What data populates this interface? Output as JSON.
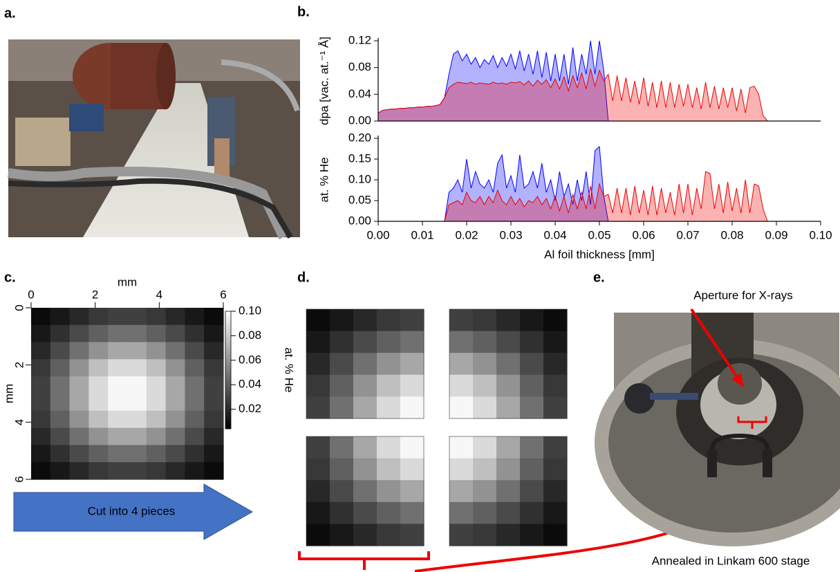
{
  "panel_labels": [
    "a.",
    "b.",
    "c.",
    "d.",
    "e."
  ],
  "arrow_label": "Cut into 4 pieces",
  "annotations": {
    "aperture": "Aperture for X-rays",
    "stage": "Annealed in Linkam 600 stage"
  },
  "chart_data": [
    {
      "type": "area",
      "ylabel": "dpa [vac. at.⁻¹ Å]",
      "x": [
        0,
        0.001,
        0.002,
        0.003,
        0.004,
        0.005,
        0.006,
        0.007,
        0.008,
        0.009,
        0.01,
        0.011,
        0.012,
        0.013,
        0.014,
        0.015,
        0.016,
        0.017,
        0.018,
        0.019,
        0.02,
        0.021,
        0.022,
        0.023,
        0.024,
        0.025,
        0.026,
        0.027,
        0.028,
        0.029,
        0.03,
        0.031,
        0.032,
        0.033,
        0.034,
        0.035,
        0.036,
        0.037,
        0.038,
        0.039,
        0.04,
        0.041,
        0.042,
        0.043,
        0.044,
        0.045,
        0.046,
        0.047,
        0.048,
        0.049,
        0.05,
        0.051,
        0.052,
        0.053,
        0.054,
        0.055,
        0.056,
        0.057,
        0.058,
        0.059,
        0.06,
        0.061,
        0.062,
        0.063,
        0.064,
        0.065,
        0.066,
        0.067,
        0.068,
        0.069,
        0.07,
        0.071,
        0.072,
        0.073,
        0.074,
        0.075,
        0.076,
        0.077,
        0.078,
        0.079,
        0.08,
        0.081,
        0.082,
        0.083,
        0.084,
        0.085,
        0.086,
        0.087,
        0.088,
        0.089,
        0.09,
        0.1
      ],
      "xlim": [
        0,
        0.1
      ],
      "ylim": [
        0,
        0.12
      ],
      "yticks": [
        {
          "value": 0,
          "label": "0.00"
        },
        {
          "value": 0.04,
          "label": "0.04"
        },
        {
          "value": 0.08,
          "label": "0.08"
        },
        {
          "value": 0.12,
          "label": "0.12"
        }
      ],
      "series": [
        {
          "color": "#0000ff",
          "values": [
            0.012,
            0.016,
            0.017,
            0.018,
            0.018,
            0.019,
            0.019,
            0.02,
            0.02,
            0.021,
            0.021,
            0.022,
            0.022,
            0.023,
            0.025,
            0.035,
            0.07,
            0.1,
            0.105,
            0.09,
            0.1,
            0.085,
            0.095,
            0.08,
            0.092,
            0.085,
            0.098,
            0.08,
            0.095,
            0.082,
            0.1,
            0.078,
            0.105,
            0.075,
            0.1,
            0.07,
            0.105,
            0.065,
            0.103,
            0.06,
            0.1,
            0.06,
            0.1,
            0.055,
            0.11,
            0.06,
            0.1,
            0.07,
            0.12,
            0.07,
            0.12,
            0.075,
            0,
            0,
            0,
            0,
            0,
            0,
            0,
            0,
            0,
            0,
            0,
            0,
            0,
            0,
            0,
            0,
            0,
            0,
            0,
            0,
            0,
            0,
            0,
            0,
            0,
            0,
            0,
            0,
            0,
            0,
            0,
            0,
            0,
            0,
            0,
            0,
            0,
            0,
            0,
            0
          ]
        },
        {
          "color": "#ee0000",
          "values": [
            0.012,
            0.016,
            0.017,
            0.018,
            0.018,
            0.019,
            0.019,
            0.02,
            0.02,
            0.021,
            0.021,
            0.022,
            0.022,
            0.023,
            0.025,
            0.035,
            0.05,
            0.055,
            0.058,
            0.057,
            0.056,
            0.058,
            0.055,
            0.057,
            0.056,
            0.055,
            0.058,
            0.056,
            0.057,
            0.055,
            0.058,
            0.057,
            0.059,
            0.054,
            0.06,
            0.052,
            0.061,
            0.055,
            0.062,
            0.05,
            0.063,
            0.048,
            0.066,
            0.045,
            0.068,
            0.05,
            0.072,
            0.048,
            0.078,
            0.052,
            0.076,
            0.06,
            0.07,
            0.03,
            0.068,
            0.03,
            0.065,
            0.028,
            0.06,
            0.025,
            0.065,
            0.022,
            0.058,
            0.02,
            0.06,
            0.02,
            0.058,
            0.02,
            0.055,
            0.022,
            0.055,
            0.02,
            0.05,
            0.018,
            0.058,
            0.02,
            0.052,
            0.018,
            0.05,
            0.02,
            0.05,
            0.015,
            0.048,
            0.012,
            0.05,
            0.052,
            0.04,
            0.008,
            0,
            0,
            0,
            0
          ]
        }
      ]
    },
    {
      "type": "area",
      "ylabel": "at. % He",
      "xlabel": "Al foil thickness [mm]",
      "x": [
        0,
        0.001,
        0.002,
        0.003,
        0.004,
        0.005,
        0.006,
        0.007,
        0.008,
        0.009,
        0.01,
        0.011,
        0.012,
        0.013,
        0.014,
        0.015,
        0.016,
        0.017,
        0.018,
        0.019,
        0.02,
        0.021,
        0.022,
        0.023,
        0.024,
        0.025,
        0.026,
        0.027,
        0.028,
        0.029,
        0.03,
        0.031,
        0.032,
        0.033,
        0.034,
        0.035,
        0.036,
        0.037,
        0.038,
        0.039,
        0.04,
        0.041,
        0.042,
        0.043,
        0.044,
        0.045,
        0.046,
        0.047,
        0.048,
        0.049,
        0.05,
        0.051,
        0.052,
        0.053,
        0.054,
        0.055,
        0.056,
        0.057,
        0.058,
        0.059,
        0.06,
        0.061,
        0.062,
        0.063,
        0.064,
        0.065,
        0.066,
        0.067,
        0.068,
        0.069,
        0.07,
        0.071,
        0.072,
        0.073,
        0.074,
        0.075,
        0.076,
        0.077,
        0.078,
        0.079,
        0.08,
        0.081,
        0.082,
        0.083,
        0.084,
        0.085,
        0.086,
        0.087,
        0.088,
        0.089,
        0.09,
        0.1
      ],
      "xlim": [
        0,
        0.1
      ],
      "ylim": [
        0,
        0.2
      ],
      "xticks": [
        {
          "value": 0,
          "label": "0.00"
        },
        {
          "value": 0.01,
          "label": "0.01"
        },
        {
          "value": 0.02,
          "label": "0.02"
        },
        {
          "value": 0.03,
          "label": "0.03"
        },
        {
          "value": 0.04,
          "label": "0.04"
        },
        {
          "value": 0.05,
          "label": "0.05"
        },
        {
          "value": 0.06,
          "label": "0.06"
        },
        {
          "value": 0.07,
          "label": "0.07"
        },
        {
          "value": 0.08,
          "label": "0.08"
        },
        {
          "value": 0.09,
          "label": "0.09"
        },
        {
          "value": 0.1,
          "label": "0.10"
        }
      ],
      "yticks": [
        {
          "value": 0,
          "label": "0.00"
        },
        {
          "value": 0.05,
          "label": "0.05"
        },
        {
          "value": 0.1,
          "label": "0.10"
        },
        {
          "value": 0.15,
          "label": "0.15"
        },
        {
          "value": 0.2,
          "label": "0.20"
        }
      ],
      "series": [
        {
          "color": "#0000ff",
          "values": [
            0,
            0,
            0,
            0,
            0,
            0,
            0,
            0,
            0,
            0,
            0,
            0,
            0,
            0,
            0,
            0,
            0.07,
            0.08,
            0.1,
            0.07,
            0.15,
            0.08,
            0.12,
            0.09,
            0.08,
            0.1,
            0.07,
            0.14,
            0.16,
            0.08,
            0.11,
            0.07,
            0.16,
            0.08,
            0.09,
            0.12,
            0.08,
            0.14,
            0.07,
            0.1,
            0.05,
            0.12,
            0.06,
            0.09,
            0.04,
            0.1,
            0.05,
            0.12,
            0.04,
            0.17,
            0.18,
            0.06,
            0,
            0,
            0,
            0,
            0,
            0,
            0,
            0,
            0,
            0,
            0,
            0,
            0,
            0,
            0,
            0,
            0,
            0,
            0,
            0,
            0,
            0,
            0,
            0,
            0,
            0,
            0,
            0,
            0,
            0,
            0,
            0,
            0,
            0,
            0,
            0,
            0,
            0,
            0,
            0
          ]
        },
        {
          "color": "#ee0000",
          "values": [
            0,
            0,
            0,
            0,
            0,
            0,
            0,
            0,
            0,
            0,
            0,
            0,
            0,
            0,
            0,
            0,
            0.04,
            0.045,
            0.05,
            0.04,
            0.07,
            0.05,
            0.045,
            0.06,
            0.04,
            0.06,
            0.045,
            0.075,
            0.05,
            0.04,
            0.06,
            0.04,
            0.055,
            0.035,
            0.05,
            0.045,
            0.06,
            0.04,
            0.055,
            0.03,
            0.06,
            0.025,
            0.06,
            0.02,
            0.065,
            0.03,
            0.07,
            0.03,
            0.085,
            0.03,
            0.09,
            0.06,
            0.065,
            0.02,
            0.08,
            0.02,
            0.08,
            0.015,
            0.085,
            0.02,
            0.075,
            0.015,
            0.085,
            0.015,
            0.08,
            0.02,
            0.07,
            0.015,
            0.09,
            0.02,
            0.09,
            0.015,
            0.08,
            0.03,
            0.12,
            0.115,
            0.03,
            0.09,
            0.02,
            0.095,
            0.025,
            0.08,
            0.02,
            0.1,
            0.02,
            0.09,
            0.085,
            0.03,
            0,
            0,
            0,
            0
          ]
        }
      ]
    },
    {
      "type": "heatmap",
      "xlabel": "mm",
      "ylabel": "mm",
      "colorbar_label": "at. % He",
      "xlim": [
        0,
        6
      ],
      "ylim": [
        0,
        6
      ],
      "yreversed": true,
      "xticks": [
        0,
        2,
        4,
        6
      ],
      "yticks": [
        0,
        2,
        4,
        6
      ],
      "clim": [
        0.004,
        0.1
      ],
      "cticks": [
        {
          "value": 0.02,
          "label": "0.02"
        },
        {
          "value": 0.04,
          "label": "0.04"
        },
        {
          "value": 0.06,
          "label": "0.06"
        },
        {
          "value": 0.08,
          "label": "0.08"
        },
        {
          "value": 0.1,
          "label": "0.10"
        }
      ],
      "z": [
        [
          0.008,
          0.013,
          0.019,
          0.025,
          0.028,
          0.028,
          0.025,
          0.019,
          0.013,
          0.008
        ],
        [
          0.013,
          0.022,
          0.032,
          0.04,
          0.046,
          0.046,
          0.04,
          0.032,
          0.022,
          0.013
        ],
        [
          0.019,
          0.032,
          0.046,
          0.059,
          0.067,
          0.067,
          0.059,
          0.046,
          0.032,
          0.019
        ],
        [
          0.025,
          0.04,
          0.059,
          0.076,
          0.086,
          0.086,
          0.076,
          0.059,
          0.04,
          0.025
        ],
        [
          0.028,
          0.046,
          0.067,
          0.086,
          0.097,
          0.097,
          0.086,
          0.067,
          0.046,
          0.028
        ],
        [
          0.028,
          0.046,
          0.067,
          0.086,
          0.097,
          0.097,
          0.086,
          0.067,
          0.046,
          0.028
        ],
        [
          0.025,
          0.04,
          0.059,
          0.076,
          0.086,
          0.086,
          0.076,
          0.059,
          0.04,
          0.025
        ],
        [
          0.019,
          0.032,
          0.046,
          0.059,
          0.067,
          0.067,
          0.059,
          0.046,
          0.032,
          0.019
        ],
        [
          0.013,
          0.022,
          0.032,
          0.04,
          0.046,
          0.046,
          0.04,
          0.032,
          0.022,
          0.013
        ],
        [
          0.008,
          0.013,
          0.019,
          0.025,
          0.028,
          0.028,
          0.025,
          0.019,
          0.013,
          0.008
        ]
      ]
    }
  ]
}
